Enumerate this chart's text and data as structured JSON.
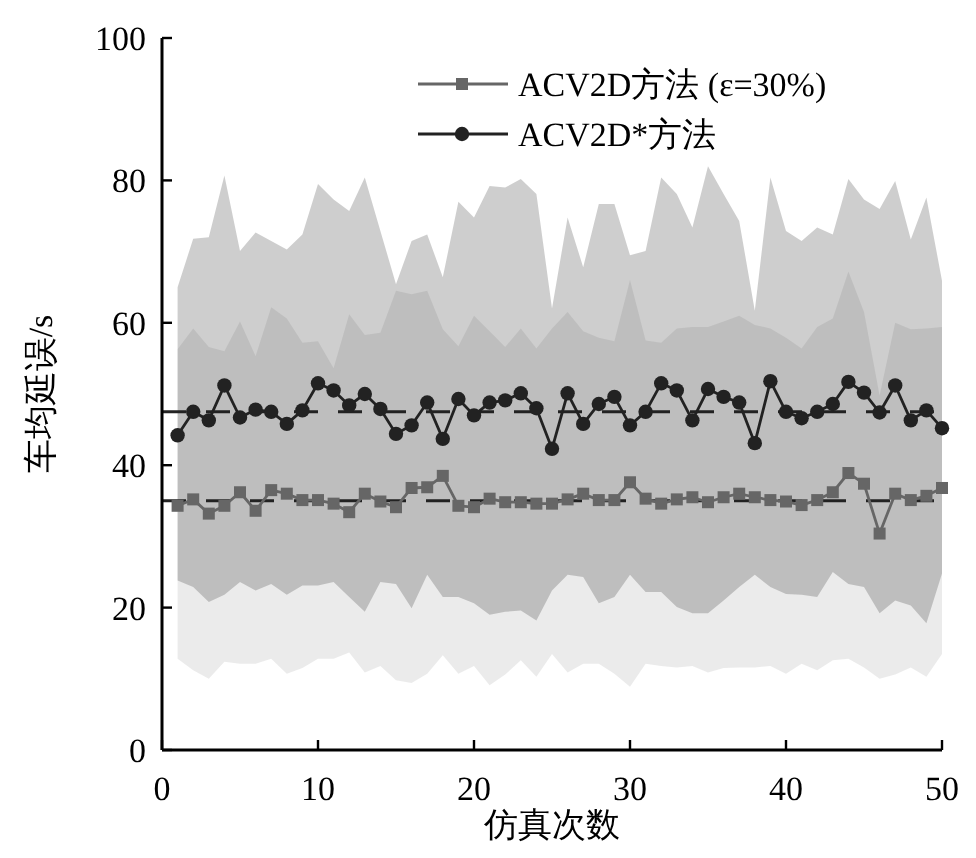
{
  "chart_data": {
    "type": "line",
    "xlabel": "仿真次数",
    "ylabel": "车均延误/s",
    "x": [
      1,
      2,
      3,
      4,
      5,
      6,
      7,
      8,
      9,
      10,
      11,
      12,
      13,
      14,
      15,
      16,
      17,
      18,
      19,
      20,
      21,
      22,
      23,
      24,
      25,
      26,
      27,
      28,
      29,
      30,
      31,
      32,
      33,
      34,
      35,
      36,
      37,
      38,
      39,
      40,
      41,
      42,
      43,
      44,
      45,
      46,
      47,
      48,
      49,
      50
    ],
    "series": [
      {
        "name": "ACV2D方法 (ε=30%)",
        "color": "#666666",
        "marker": "square",
        "values": [
          34.3,
          35.2,
          33.2,
          34.3,
          36.2,
          33.6,
          36.5,
          36.0,
          35.1,
          35.1,
          34.6,
          33.4,
          36.0,
          34.9,
          34.1,
          36.8,
          36.9,
          38.5,
          34.3,
          34.1,
          35.3,
          34.8,
          34.8,
          34.6,
          34.6,
          35.2,
          36.0,
          35.1,
          35.1,
          37.6,
          35.3,
          34.6,
          35.2,
          35.5,
          34.8,
          35.5,
          36.0,
          35.5,
          35.1,
          34.9,
          34.4,
          35.1,
          36.2,
          38.9,
          37.4,
          30.4,
          36.0,
          35.1,
          35.7,
          36.8
        ],
        "upper": [
          56.3,
          59.2,
          56.6,
          56.0,
          60.2,
          55.3,
          62.2,
          60.6,
          57.2,
          57.4,
          53.6,
          61.2,
          58.3,
          58.6,
          64.5,
          64.0,
          64.5,
          59.1,
          56.7,
          61.0,
          58.8,
          56.6,
          59.2,
          56.4,
          59.2,
          61.5,
          58.8,
          57.9,
          57.4,
          66.0,
          57.5,
          57.2,
          59.2,
          59.4,
          59.4,
          60.2,
          61.0,
          59.7,
          59.2,
          57.9,
          56.4,
          59.4,
          60.6,
          67.2,
          61.5,
          49.8,
          60.0,
          59.1,
          59.2,
          59.4
        ],
        "lower": [
          12.8,
          11.2,
          10.0,
          12.4,
          12.1,
          12.1,
          12.8,
          10.7,
          11.5,
          12.8,
          12.8,
          13.7,
          10.9,
          11.8,
          9.8,
          9.4,
          10.7,
          13.3,
          10.7,
          11.8,
          9.1,
          10.6,
          12.6,
          10.3,
          13.5,
          10.9,
          12.1,
          12.1,
          10.7,
          8.9,
          12.1,
          11.8,
          11.6,
          11.8,
          10.9,
          11.5,
          11.6,
          11.6,
          11.8,
          10.7,
          12.1,
          11.2,
          12.6,
          12.8,
          11.6,
          10.0,
          10.6,
          11.6,
          10.3,
          13.5
        ]
      },
      {
        "name": "ACV2D*方法",
        "color": "#222222",
        "marker": "circle",
        "values": [
          44.2,
          47.5,
          46.3,
          51.2,
          46.7,
          47.8,
          47.5,
          45.8,
          47.7,
          51.5,
          50.5,
          48.4,
          50.0,
          47.9,
          44.4,
          45.6,
          48.8,
          43.7,
          49.3,
          47.0,
          48.8,
          49.1,
          50.1,
          48.0,
          42.3,
          50.1,
          45.8,
          48.6,
          49.6,
          45.6,
          47.5,
          51.5,
          50.5,
          46.3,
          50.7,
          49.6,
          48.8,
          43.1,
          51.8,
          47.5,
          46.6,
          47.5,
          48.6,
          51.7,
          50.2,
          47.4,
          51.2,
          46.3,
          47.7,
          45.2
        ],
        "upper": [
          65.0,
          71.8,
          72.0,
          80.7,
          70.1,
          72.7,
          71.5,
          70.3,
          72.4,
          79.5,
          77.3,
          75.7,
          80.4,
          72.9,
          65.4,
          71.5,
          72.4,
          66.4,
          77.0,
          74.8,
          79.2,
          79.0,
          80.2,
          78.1,
          62.0,
          74.8,
          67.8,
          76.7,
          76.7,
          69.5,
          70.1,
          80.4,
          78.1,
          73.4,
          82.0,
          78.1,
          74.3,
          61.7,
          80.4,
          72.9,
          71.5,
          73.4,
          72.4,
          80.2,
          77.3,
          76.0,
          79.9,
          71.7,
          77.6,
          65.9
        ],
        "lower": [
          23.8,
          22.9,
          20.8,
          21.8,
          23.6,
          22.4,
          23.3,
          21.8,
          23.1,
          23.1,
          23.6,
          21.5,
          19.4,
          23.6,
          23.3,
          19.9,
          24.6,
          21.5,
          21.5,
          20.6,
          19.0,
          19.4,
          19.6,
          18.2,
          22.4,
          24.6,
          24.3,
          20.6,
          21.5,
          24.6,
          22.2,
          22.2,
          20.1,
          19.2,
          19.2,
          21.0,
          22.9,
          24.6,
          22.9,
          21.9,
          21.8,
          21.5,
          25.0,
          23.3,
          22.9,
          19.2,
          21.0,
          20.3,
          17.8,
          24.8
        ]
      }
    ],
    "ref_lines": [
      {
        "axis": "y",
        "value": 47.5,
        "color": "#222222",
        "line_style": "dashed"
      },
      {
        "axis": "y",
        "value": 35,
        "color": "#222222",
        "line_style": "dashed"
      }
    ],
    "xlim": [
      0,
      50
    ],
    "ylim": [
      0,
      100
    ],
    "xticks": [
      0,
      10,
      20,
      30,
      40,
      50
    ],
    "yticks": [
      0,
      20,
      40,
      60,
      80,
      100
    ],
    "grid": false,
    "legend": "top right",
    "line_style": "solid"
  }
}
